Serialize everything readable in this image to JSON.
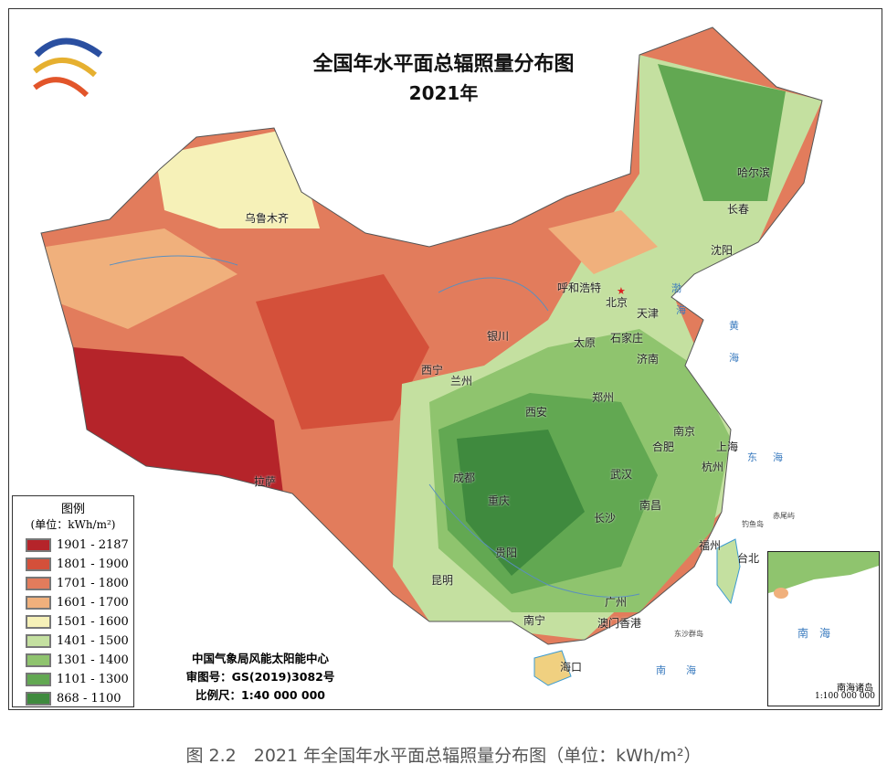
{
  "title": "全国年水平面总辐照量分布图",
  "subtitle": "2021年",
  "legend": {
    "title": "图例",
    "unit": "(单位：kWh/m²)",
    "items": [
      {
        "label": "1901 - 2187",
        "color": "#b5242a"
      },
      {
        "label": "1801 - 1900",
        "color": "#d4503a"
      },
      {
        "label": "1701 - 1800",
        "color": "#e27c5c"
      },
      {
        "label": "1601 - 1700",
        "color": "#f0b07c"
      },
      {
        "label": "1501 - 1600",
        "color": "#f6f1b8"
      },
      {
        "label": "1401 - 1500",
        "color": "#c4e0a0"
      },
      {
        "label": "1301 - 1400",
        "color": "#8fc46e"
      },
      {
        "label": "1101 - 1300",
        "color": "#62a852"
      },
      {
        "label": "868 - 1100",
        "color": "#3f8a3e"
      }
    ]
  },
  "credits": {
    "org": "中国气象局风能太阳能中心",
    "approval": "审图号：GS(2019)3082号",
    "scale": "比例尺：1:40 000 000"
  },
  "cities": [
    "乌鲁木齐",
    "呼和浩特",
    "北京",
    "天津",
    "银川",
    "太原",
    "石家庄",
    "济南",
    "西宁",
    "兰州",
    "郑州",
    "西安",
    "南京",
    "合肥",
    "上海",
    "拉萨",
    "成都",
    "武汉",
    "杭州",
    "重庆",
    "南昌",
    "长沙",
    "贵阳",
    "福州",
    "台北",
    "昆明",
    "广州",
    "南宁",
    "澳门香港",
    "海口",
    "哈尔滨",
    "长春",
    "沈阳"
  ],
  "seas": {
    "bohai_1": "渤",
    "bohai_2": "海",
    "huanghai_1": "黄",
    "huanghai_2": "海",
    "donghai_1": "东",
    "donghai_2": "海",
    "nanhai": "南　　海"
  },
  "islands": {
    "diaoyu": "钓鱼岛",
    "chiwei": "赤尾屿",
    "dongsha": "东沙群岛"
  },
  "inset": {
    "sea": "南　海",
    "title": "南海诸岛",
    "scale": "1:100 000 000"
  },
  "caption": "图 2.2　2021 年全国年水平面总辐照量分布图（单位：kWh/m²）"
}
